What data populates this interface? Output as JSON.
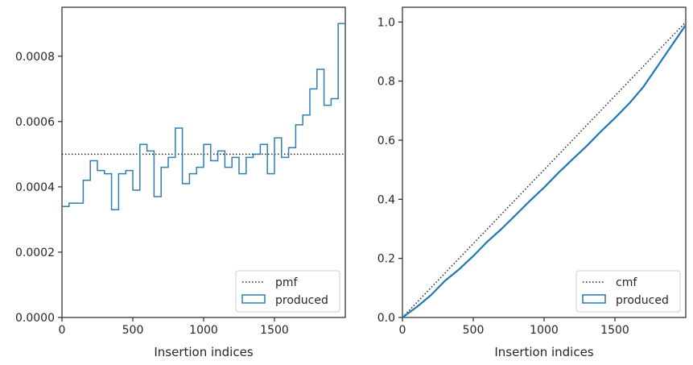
{
  "chart_data": [
    {
      "type": "step-histogram",
      "xlabel": "Insertion indices",
      "ylabel": "",
      "xlim": [
        0,
        2000
      ],
      "ylim": [
        0,
        0.00095
      ],
      "xticks": [
        0,
        500,
        1000,
        1500
      ],
      "xtick_labels": [
        "0",
        "500",
        "1000",
        "1500"
      ],
      "yticks": [
        0,
        0.0002,
        0.0004,
        0.0006,
        0.0008
      ],
      "ytick_labels": [
        "0.0000",
        "0.0002",
        "0.0004",
        "0.0006",
        "0.0008"
      ],
      "grid": false,
      "legend_position": "lower right",
      "reference_line": {
        "name": "pmf",
        "style": "dotted",
        "y": 0.0005
      },
      "series": [
        {
          "name": "produced",
          "color": "#2f7fad",
          "bin_width": 50,
          "bin_start": 0,
          "values": [
            0.00034,
            0.00035,
            0.00035,
            0.00042,
            0.00048,
            0.00045,
            0.00044,
            0.00033,
            0.00044,
            0.00045,
            0.00039,
            0.00053,
            0.00051,
            0.00037,
            0.00046,
            0.00049,
            0.00058,
            0.00041,
            0.00044,
            0.00046,
            0.00053,
            0.00048,
            0.00051,
            0.00046,
            0.00049,
            0.00044,
            0.00049,
            0.0005,
            0.00053,
            0.00044,
            0.00055,
            0.00049,
            0.00052,
            0.00059,
            0.00062,
            0.0007,
            0.00076,
            0.00065,
            0.00067,
            0.0009
          ]
        }
      ]
    },
    {
      "type": "line",
      "xlabel": "Insertion indices",
      "ylabel": "",
      "xlim": [
        0,
        2000
      ],
      "ylim": [
        0,
        1.05
      ],
      "xticks": [
        0,
        500,
        1000,
        1500
      ],
      "xtick_labels": [
        "0",
        "500",
        "1000",
        "1500"
      ],
      "yticks": [
        0,
        0.2,
        0.4,
        0.6,
        0.8,
        1.0
      ],
      "ytick_labels": [
        "0.0",
        "0.2",
        "0.4",
        "0.6",
        "0.8",
        "1.0"
      ],
      "grid": false,
      "legend_position": "lower right",
      "reference_line": {
        "name": "cmf",
        "style": "dotted",
        "x": [
          0,
          2000
        ],
        "y": [
          0,
          1.0
        ]
      },
      "series": [
        {
          "name": "produced",
          "color": "#1f77b4",
          "x": [
            0,
            100,
            200,
            300,
            400,
            500,
            600,
            700,
            800,
            900,
            1000,
            1100,
            1200,
            1300,
            1400,
            1500,
            1600,
            1700,
            1800,
            1900,
            2000
          ],
          "y": [
            0.0,
            0.035,
            0.075,
            0.124,
            0.163,
            0.208,
            0.257,
            0.3,
            0.347,
            0.395,
            0.44,
            0.489,
            0.535,
            0.58,
            0.629,
            0.675,
            0.724,
            0.78,
            0.85,
            0.92,
            0.99
          ]
        }
      ]
    }
  ]
}
